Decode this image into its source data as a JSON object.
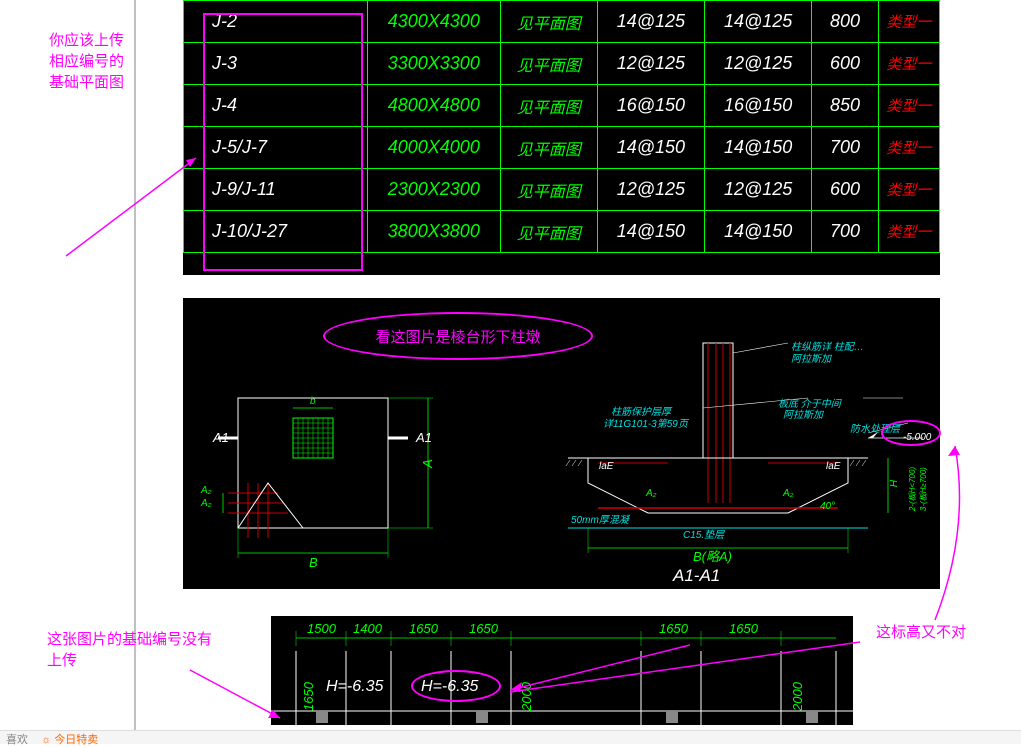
{
  "colors": {
    "cad_bg": "#000000",
    "magenta": "#ff00ff",
    "green": "#00ff00",
    "white": "#ffffff",
    "red": "#ff0000",
    "cyan": "#00e0e0",
    "page_bg": "#ffffff",
    "divider": "#c0c0c0"
  },
  "annotations": {
    "top_left": "你应该上传\n相应编号的\n基础平面图",
    "bubble_center": "看这图片是棱台形下柱墩",
    "bottom_left": "这张图片的基础编号没有\n上传",
    "right": "这标高又不对"
  },
  "table": {
    "rows": [
      {
        "id": "J-2",
        "size": "4300X4300",
        "ref": "见平面图",
        "bar1": "14@125",
        "bar2": "14@125",
        "h": "800",
        "type": "类型一"
      },
      {
        "id": "J-3",
        "size": "3300X3300",
        "ref": "见平面图",
        "bar1": "12@125",
        "bar2": "12@125",
        "h": "600",
        "type": "类型一"
      },
      {
        "id": "J-4",
        "size": "4800X4800",
        "ref": "见平面图",
        "bar1": "16@150",
        "bar2": "16@150",
        "h": "850",
        "type": "类型一"
      },
      {
        "id": "J-5/J-7",
        "size": "4000X4000",
        "ref": "见平面图",
        "bar1": "14@150",
        "bar2": "14@150",
        "h": "700",
        "type": "类型一"
      },
      {
        "id": "J-9/J-11",
        "size": "2300X2300",
        "ref": "见平面图",
        "bar1": "12@125",
        "bar2": "12@125",
        "h": "600",
        "type": "类型一"
      },
      {
        "id": "J-10/J-27",
        "size": "3800X3800",
        "ref": "见平面图",
        "bar1": "14@150",
        "bar2": "14@150",
        "h": "700",
        "type": "类型一"
      }
    ]
  },
  "section": {
    "label_A1_left": "A1",
    "label_A1_right": "A1",
    "label_A2_top": "A₂",
    "label_A2_bot": "A₂",
    "label_b": "b",
    "dim_B": "B",
    "dim_A": "A",
    "title": "A1-A1",
    "concrete": "50mm厚混凝",
    "c15": "C15.垫层",
    "elev": "-5.000",
    "note1": "柱纵筋详 柱配…",
    "note2": "阿拉斯加",
    "note3": "柱筋保护层厚",
    "note4": "详11G101-3第59页",
    "note5": "板底 介于中间",
    "note6": "阿拉斯加",
    "note7": "防水处理层",
    "lae1": "laE",
    "lae2": "laE",
    "as1": "A₂",
    "as2": "A₂",
    "dim_B2": "B(略A)",
    "dim_H": "H",
    "dim_side": "2-(板H<700)\n3-(板H≥700)",
    "angle": "40°"
  },
  "plan": {
    "dims_top": [
      "1500",
      "1400",
      "1650",
      "1650",
      "1650",
      "1650"
    ],
    "dims_side": [
      "1650",
      "2000",
      "2000"
    ],
    "h1": "H=-6.35",
    "h2": "H=-6.35"
  },
  "bottom_bar": {
    "fav": "喜欢",
    "sale_icon": "☼",
    "sale": "今日特卖"
  }
}
